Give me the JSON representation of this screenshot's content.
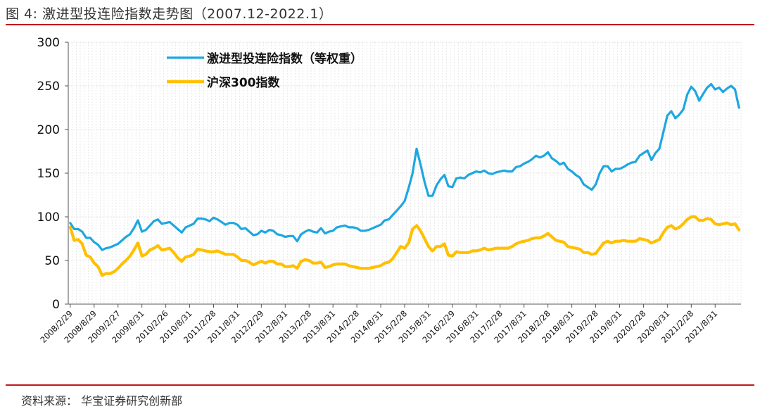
{
  "title": "图 4:  激进型投连险指数走势图（2007.12-2022.1）",
  "source": "资料来源：  华宝证券研究创新部",
  "colors": {
    "series_1": "#1ea7e1",
    "series_2": "#ffc000",
    "rule": "#c0191b"
  },
  "chart_data": {
    "type": "line",
    "title": "",
    "xlabel": "",
    "ylabel": "",
    "ylim": [
      0,
      300
    ],
    "yticks": [
      0,
      50,
      100,
      150,
      200,
      250,
      300
    ],
    "xtick_labels": [
      "2008/2/29",
      "2008/8/29",
      "2009/2/27",
      "2009/8/31",
      "2010/2/26",
      "2010/8/31",
      "2011/2/28",
      "2011/8/31",
      "2012/2/29",
      "2012/8/31",
      "2013/2/28",
      "2013/8/31",
      "2014/2/28",
      "2014/8/31",
      "2015/2/28",
      "2015/8/31",
      "2016/2/29",
      "2016/8/31",
      "2017/2/28",
      "2017/8/31",
      "2018/2/28",
      "2018/8/31",
      "2019/2/28",
      "2019/8/31",
      "2020/2/28",
      "2020/8/31",
      "2021/2/28",
      "2021/8/31"
    ],
    "grid": true,
    "legend_position": "top-left",
    "series": [
      {
        "name": "激进型投连险指数（等权重）",
        "values": [
          93,
          86,
          86,
          83,
          76,
          76,
          71,
          68,
          62,
          64,
          65,
          67,
          69,
          73,
          77,
          80,
          87,
          96,
          83,
          85,
          90,
          95,
          97,
          92,
          93,
          94,
          90,
          86,
          82,
          88,
          90,
          92,
          98,
          98,
          97,
          95,
          99,
          97,
          94,
          91,
          93,
          93,
          91,
          86,
          87,
          83,
          79,
          80,
          84,
          82,
          85,
          84,
          80,
          79,
          77,
          78,
          78,
          72,
          80,
          83,
          85,
          83,
          82,
          87,
          81,
          83,
          84,
          88,
          89,
          90,
          88,
          88,
          87,
          84,
          84,
          85,
          87,
          89,
          91,
          96,
          97,
          102,
          107,
          112,
          118,
          133,
          150,
          178,
          160,
          140,
          124,
          124,
          136,
          143,
          148,
          135,
          134,
          144,
          145,
          144,
          148,
          150,
          152,
          151,
          153,
          150,
          149,
          151,
          152,
          153,
          152,
          152,
          157,
          158,
          161,
          163,
          166,
          170,
          168,
          170,
          174,
          167,
          164,
          160,
          162,
          155,
          152,
          148,
          145,
          137,
          134,
          131,
          137,
          150,
          158,
          158,
          152,
          155,
          155,
          157,
          160,
          162,
          163,
          170,
          173,
          176,
          165,
          173,
          178,
          197,
          216,
          221,
          213,
          217,
          223,
          240,
          249,
          244,
          233,
          241,
          248,
          252,
          246,
          248,
          243,
          247,
          250,
          246,
          225
        ]
      },
      {
        "name": "沪深300指数",
        "values": [
          88,
          73,
          74,
          69,
          56,
          54,
          47,
          43,
          33,
          35,
          35,
          37,
          41,
          46,
          50,
          55,
          62,
          70,
          55,
          57,
          62,
          64,
          67,
          62,
          63,
          64,
          59,
          53,
          49,
          54,
          55,
          57,
          63,
          62,
          61,
          60,
          60,
          61,
          59,
          57,
          57,
          57,
          54,
          50,
          50,
          48,
          45,
          47,
          49,
          47,
          49,
          49,
          46,
          46,
          43,
          43,
          44,
          41,
          49,
          51,
          50,
          47,
          47,
          48,
          42,
          43,
          45,
          46,
          46,
          46,
          44,
          43,
          42,
          41,
          41,
          41,
          42,
          43,
          44,
          47,
          48,
          52,
          59,
          66,
          64,
          70,
          86,
          90,
          84,
          75,
          66,
          61,
          66,
          66,
          69,
          56,
          55,
          60,
          59,
          59,
          59,
          61,
          61,
          62,
          64,
          62,
          63,
          64,
          64,
          64,
          64,
          66,
          69,
          71,
          72,
          73,
          75,
          76,
          76,
          78,
          81,
          77,
          73,
          72,
          71,
          66,
          65,
          64,
          63,
          59,
          59,
          57,
          58,
          64,
          70,
          72,
          70,
          72,
          72,
          73,
          72,
          72,
          72,
          75,
          74,
          73,
          70,
          72,
          74,
          82,
          88,
          90,
          86,
          88,
          92,
          97,
          100,
          100,
          96,
          96,
          98,
          97,
          92,
          91,
          92,
          93,
          91,
          92,
          85
        ]
      }
    ]
  }
}
